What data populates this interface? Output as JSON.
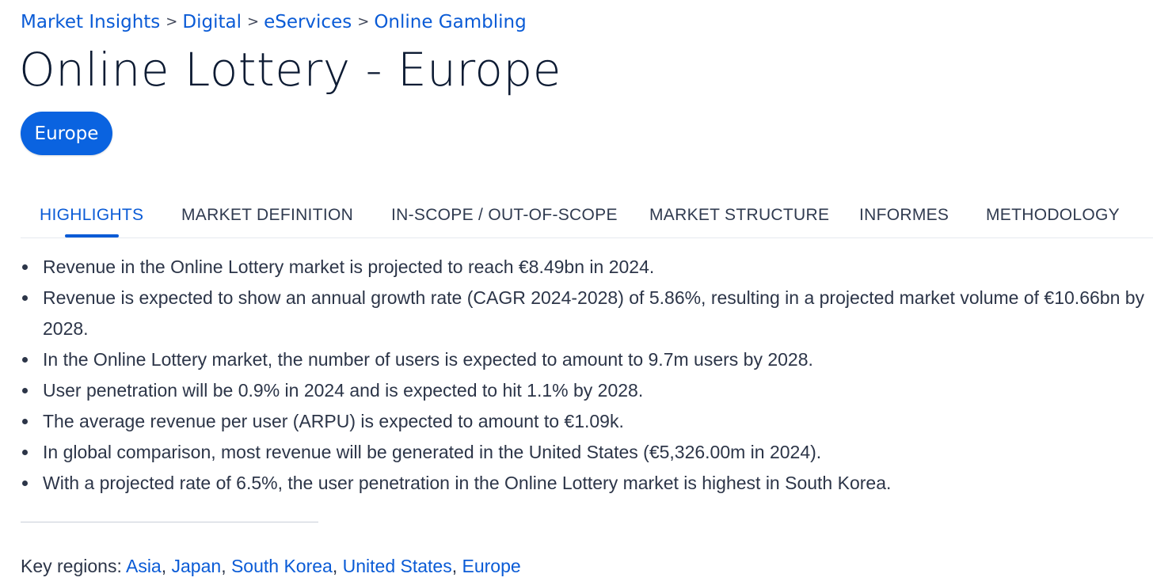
{
  "breadcrumb": {
    "items": [
      "Market Insights",
      "Digital",
      "eServices",
      "Online Gambling"
    ],
    "separator": ">"
  },
  "page": {
    "title": "Online Lottery - Europe"
  },
  "region_chip": {
    "label": "Europe"
  },
  "tabs": [
    {
      "label": "HIGHLIGHTS",
      "active": true
    },
    {
      "label": "MARKET DEFINITION",
      "active": false
    },
    {
      "label": "IN-SCOPE / OUT-OF-SCOPE",
      "active": false
    },
    {
      "label": "MARKET STRUCTURE",
      "active": false
    },
    {
      "label": "INFORMES",
      "active": false
    },
    {
      "label": "METHODOLOGY",
      "active": false
    }
  ],
  "highlights": [
    "Revenue in the Online Lottery market is projected to reach €8.49bn in 2024.",
    "Revenue is expected to show an annual growth rate (CAGR 2024-2028) of 5.86%, resulting in a projected market volume of €10.66bn by 2028.",
    "In the Online Lottery market, the number of users is expected to amount to 9.7m users by 2028.",
    "User penetration will be 0.9% in 2024 and is expected to hit 1.1% by 2028.",
    "The average revenue per user (ARPU) is expected to amount to €1.09k.",
    "In global comparison, most revenue will be generated in the United States (€5,326.00m in 2024).",
    "With a projected rate of 6.5%, the user penetration in the Online Lottery market is highest in South Korea."
  ],
  "key_regions": {
    "label": "Key regions:",
    "links": [
      "Asia",
      "Japan",
      "South Korea",
      "United States",
      "Europe"
    ],
    "separator": ","
  },
  "colors": {
    "link": "#0a5bd6",
    "chip": "#0a63e0",
    "title": "#0d1b33",
    "body_text": "#2c3548"
  }
}
